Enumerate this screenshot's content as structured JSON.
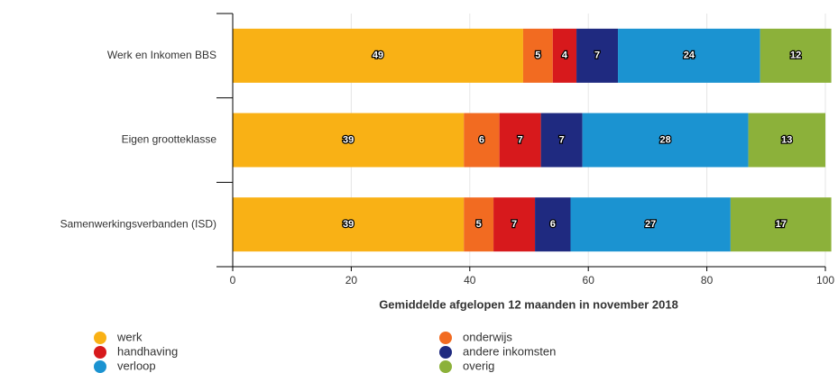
{
  "chart_data": {
    "type": "stacked-barh",
    "categories": [
      "Werk en Inkomen BBS",
      "Eigen grootteklasse",
      "Samenwerkingsverbanden (ISD)"
    ],
    "series": [
      {
        "name": "werk",
        "color": "#f9b115",
        "values": [
          49,
          39,
          39
        ]
      },
      {
        "name": "onderwijs",
        "color": "#f26b21",
        "values": [
          5,
          6,
          5
        ]
      },
      {
        "name": "handhaving",
        "color": "#d7191c",
        "values": [
          4,
          7,
          7
        ]
      },
      {
        "name": "andere inkomsten",
        "color": "#1f2a80",
        "values": [
          7,
          7,
          6
        ]
      },
      {
        "name": "verloop",
        "color": "#1b93d1",
        "values": [
          24,
          28,
          27
        ]
      },
      {
        "name": "overig",
        "color": "#8cb13a",
        "values": [
          12,
          13,
          17
        ]
      }
    ],
    "xlabel": "Gemiddelde afgelopen 12 maanden in november 2018",
    "xlim": [
      0,
      100
    ],
    "xticks": [
      0,
      20,
      40,
      60,
      80,
      100
    ],
    "grid": true
  }
}
